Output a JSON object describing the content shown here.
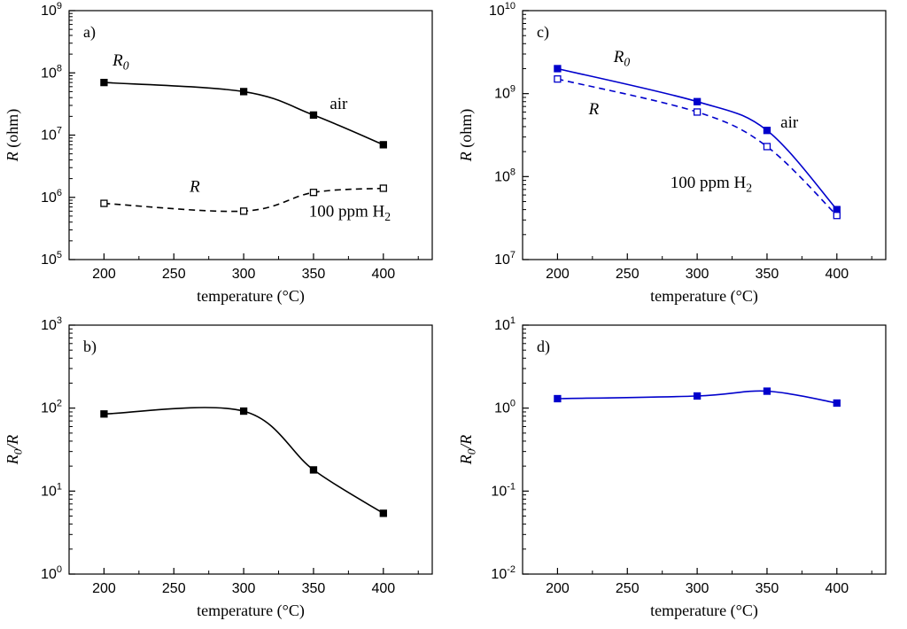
{
  "figure": {
    "background": "#ffffff",
    "panel_order": [
      "a",
      "c",
      "b",
      "d"
    ]
  },
  "chart_data": [
    {
      "id": "a",
      "type": "line",
      "panel_label": "a)",
      "color": "#000000",
      "xlabel": "temperature (°C)",
      "ylabel_parts": [
        {
          "t": "R",
          "i": 1
        },
        {
          "t": " (ohm)",
          "i": 0
        }
      ],
      "xlim": [
        175,
        435
      ],
      "xticks": [
        200,
        250,
        300,
        350,
        400
      ],
      "x_minor": 25,
      "ylim_exp": [
        5,
        9
      ],
      "series": [
        {
          "name": "R0 in air",
          "line": "solid",
          "marker": "filled",
          "x": [
            200,
            300,
            350,
            400
          ],
          "y": [
            70000000.0,
            50000000.0,
            21000000.0,
            7000000.0
          ]
        },
        {
          "name": "R in 100 ppm H2",
          "line": "dashed",
          "marker": "open",
          "x": [
            200,
            300,
            350,
            400
          ],
          "y": [
            800000.0,
            600000.0,
            1200000.0,
            1400000.0
          ]
        }
      ],
      "annotations": [
        {
          "text": "R₀",
          "x": 212,
          "y": 160000000.0,
          "italic": true
        },
        {
          "text": "air",
          "x": 368,
          "y": 32000000.0,
          "italic": false
        },
        {
          "text": "R",
          "x": 265,
          "y": 1500000.0,
          "italic": true
        },
        {
          "text": "100 ppm H₂",
          "x": 376,
          "y": 600000.0,
          "italic": false
        }
      ]
    },
    {
      "id": "c",
      "type": "line",
      "panel_label": "c)",
      "color": "#0000cc",
      "xlabel": "temperature (°C)",
      "ylabel_parts": [
        {
          "t": "R",
          "i": 1
        },
        {
          "t": " (ohm)",
          "i": 0
        }
      ],
      "xlim": [
        175,
        435
      ],
      "xticks": [
        200,
        250,
        300,
        350,
        400
      ],
      "x_minor": 25,
      "ylim_exp": [
        7,
        10
      ],
      "series": [
        {
          "name": "R0 in air",
          "line": "solid",
          "marker": "filled",
          "x": [
            200,
            300,
            350,
            400
          ],
          "y": [
            2000000000.0,
            800000000.0,
            360000000.0,
            40000000.0
          ]
        },
        {
          "name": "R in 100 ppm H2",
          "line": "dashed",
          "marker": "open",
          "x": [
            200,
            300,
            350,
            400
          ],
          "y": [
            1500000000.0,
            600000000.0,
            230000000.0,
            34000000.0
          ]
        }
      ],
      "annotations": [
        {
          "text": "R₀",
          "x": 246,
          "y": 2800000000.0,
          "italic": true
        },
        {
          "text": "R",
          "x": 226,
          "y": 650000000.0,
          "italic": true
        },
        {
          "text": "air",
          "x": 366,
          "y": 450000000.0,
          "italic": false
        },
        {
          "text": "100 ppm H₂",
          "x": 310,
          "y": 85000000.0,
          "italic": false
        }
      ]
    },
    {
      "id": "b",
      "type": "line",
      "panel_label": "b)",
      "color": "#000000",
      "xlabel": "temperature (°C)",
      "ylabel_parts": [
        {
          "t": "R₀/R",
          "i": 1
        }
      ],
      "xlim": [
        175,
        435
      ],
      "xticks": [
        200,
        250,
        300,
        350,
        400
      ],
      "x_minor": 25,
      "ylim_exp": [
        0,
        3
      ],
      "series": [
        {
          "name": "R0/R",
          "line": "solid",
          "marker": "filled",
          "x": [
            200,
            300,
            350,
            400
          ],
          "y": [
            85,
            92,
            18,
            5.4
          ]
        }
      ],
      "annotations": []
    },
    {
      "id": "d",
      "type": "line",
      "panel_label": "d)",
      "color": "#0000cc",
      "xlabel": "temperature (°C)",
      "ylabel_parts": [
        {
          "t": "R₀/R",
          "i": 1
        }
      ],
      "xlim": [
        175,
        435
      ],
      "xticks": [
        200,
        250,
        300,
        350,
        400
      ],
      "x_minor": 25,
      "ylim_exp": [
        -2,
        1
      ],
      "series": [
        {
          "name": "R0/R",
          "line": "solid",
          "marker": "filled",
          "x": [
            200,
            300,
            350,
            400
          ],
          "y": [
            1.3,
            1.4,
            1.6,
            1.15
          ]
        }
      ],
      "annotations": []
    }
  ]
}
